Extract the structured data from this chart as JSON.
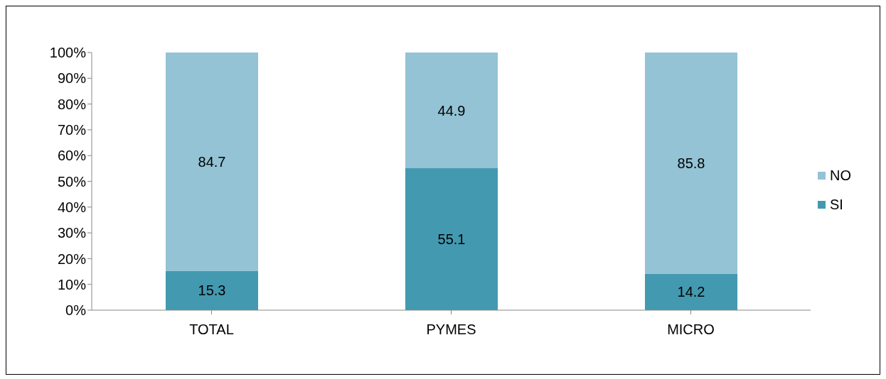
{
  "chart_data": {
    "type": "bar",
    "stacked": true,
    "categories": [
      "TOTAL",
      "PYMES",
      "MICRO"
    ],
    "series": [
      {
        "name": "SI",
        "color": "#4399b0",
        "values": [
          15.3,
          55.1,
          14.2
        ]
      },
      {
        "name": "NO",
        "color": "#93c3d4",
        "values": [
          84.7,
          44.9,
          85.8
        ]
      }
    ],
    "ylim": [
      0,
      100
    ],
    "yticks": [
      {
        "value": 0,
        "label": "0%"
      },
      {
        "value": 10,
        "label": "10%"
      },
      {
        "value": 20,
        "label": "20%"
      },
      {
        "value": 30,
        "label": "30%"
      },
      {
        "value": 40,
        "label": "40%"
      },
      {
        "value": 50,
        "label": "50%"
      },
      {
        "value": 60,
        "label": "60%"
      },
      {
        "value": 70,
        "label": "70%"
      },
      {
        "value": 80,
        "label": "80%"
      },
      {
        "value": 90,
        "label": "90%"
      },
      {
        "value": 100,
        "label": "100%"
      }
    ],
    "grid": false,
    "legend": "right",
    "data_labels": true
  }
}
